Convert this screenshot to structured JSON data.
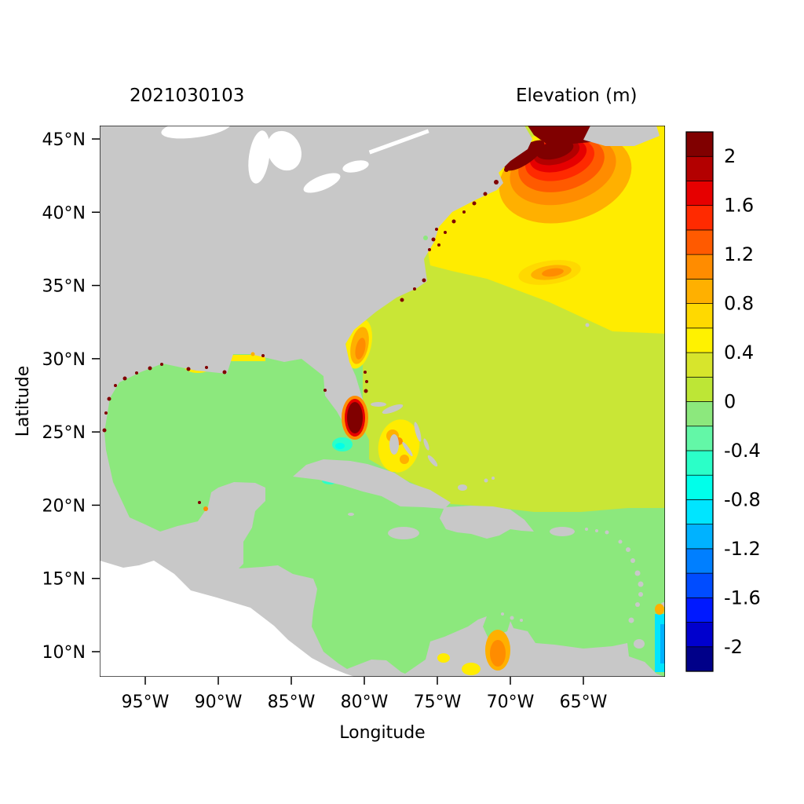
{
  "page": {
    "background": "#ffffff"
  },
  "chart_data": {
    "type": "heatmap",
    "variant": "geographic filled-contour field of sea-surface elevation over the western North Atlantic, Gulf of Mexico and Caribbean",
    "title_left": "2021030103",
    "title_right": "Elevation (m)",
    "xlabel": "Longitude",
    "ylabel": "Latitude",
    "x_tick_labels": [
      "95°W",
      "90°W",
      "85°W",
      "80°W",
      "75°W",
      "70°W",
      "65°W"
    ],
    "y_tick_labels_top_to_bottom": [
      "45°N",
      "40°N",
      "35°N",
      "30°N",
      "25°N",
      "20°N",
      "15°N",
      "10°N"
    ],
    "axes": {
      "lon_range_west_to_east": [
        "~98.5°W",
        "~59.5°W"
      ],
      "lat_range_south_to_north": [
        "~8.5°N",
        "~46°N"
      ],
      "grid": false
    },
    "colorbar": {
      "label": "Elevation (m)",
      "position": "right",
      "range": [
        -2.2,
        2.2
      ],
      "step": 0.2,
      "tick_values": [
        2,
        1.6,
        1.2,
        0.8,
        0.4,
        0,
        -0.4,
        -0.8,
        -1.2,
        -1.6,
        -2
      ],
      "tick_labels": [
        "2",
        "1.6",
        "1.2",
        "0.8",
        "0.4",
        "0",
        "-0.4",
        "-0.8",
        "-1.2",
        "-1.6",
        "-2"
      ],
      "colors_bottom_to_top": [
        "#000089",
        "#0000cd",
        "#0019ff",
        "#004cff",
        "#007fff",
        "#00b2ff",
        "#00e5ff",
        "#00ffea",
        "#2bffc8",
        "#63f7a7",
        "#8ce87d",
        "#bde636",
        "#d7e52c",
        "#fff200",
        "#ffd900",
        "#ffb000",
        "#ff8c00",
        "#ff5a00",
        "#ff2a00",
        "#e60000",
        "#b30000",
        "#800000"
      ]
    },
    "palette_vars": {
      "land": "#c8c8c8",
      "lake": "#ffffff",
      "ocean-base": "#c9e636",
      "green": "#8ce87d",
      "springgreen": "#63f7a7",
      "turquoise": "#2bffc8",
      "aqua": "#00ffea",
      "cyan": "#00e5ff",
      "midblue": "#00b2ff",
      "yellow": "#ffec00",
      "gold": "#ffd900",
      "orange": "#ffb000",
      "deeporange": "#ff8c00",
      "redorange": "#ff5a00",
      "red": "#ff2a00",
      "brightred": "#e60000",
      "darkred": "#b30000",
      "maroon": "#800000"
    },
    "features": [
      {
        "name": "gulf-of-maine-scotian-shelf-maximum",
        "approx_location": "68°W, 43.5°N",
        "elevation_m": "> 2.0 (dark red bullseye with orange/yellow halo)"
      },
      {
        "name": "northwest-atlantic",
        "approx_location": "60-75°W, 38-46°N",
        "elevation_m": "0.4 to 0.8 (yellow)"
      },
      {
        "name": "open-atlantic",
        "approx_location": "most of basin",
        "elevation_m": "0 to 0.4 (yellow-green)"
      },
      {
        "name": "gulf-of-mexico",
        "elevation_m": "-0.2 to 0 (light green)"
      },
      {
        "name": "caribbean-sea",
        "elevation_m": "-0.2 to 0 (light green)"
      },
      {
        "name": "southeast-florida-coast",
        "approx_location": "80°W, 26°N",
        "elevation_m": "> 2.0 (dark red blob)"
      },
      {
        "name": "georgia-south-carolina-coast",
        "approx_location": "81°W, 31°N",
        "elevation_m": "0.8 to 1.2 (orange band)"
      },
      {
        "name": "mid-atlantic-patch",
        "approx_location": "70°W, 36°N",
        "elevation_m": "0.6 to 1.0 (orange lens)"
      },
      {
        "name": "florida-big-bend",
        "approx_location": "83.5°W, 29.5°N",
        "elevation_m": "-0.6 to -0.3 (turquoise)"
      },
      {
        "name": "florida-bay-keys",
        "approx_location": "81.5°W, 24.5°N",
        "elevation_m": "-0.6 to -0.3 (turquoise)"
      },
      {
        "name": "bahamas-banks",
        "approx_location": "78°W, 25°N",
        "elevation_m": "0.4 to 1.0 (yellow/orange spots)"
      },
      {
        "name": "gulf-of-venezuela-lake-maracaibo",
        "approx_location": "71°W, 10.5°N",
        "elevation_m": "0.6 to 1.0 (orange)"
      },
      {
        "name": "orinoco-right-edge-strip",
        "approx_location": "60°W, 9-13°N",
        "elevation_m": "-1.0 to -0.6 (cyan)"
      },
      {
        "name": "northern-gulf-and-texas-coast-specks",
        "elevation_m": "> 1.6 (red speckles along coast)"
      },
      {
        "name": "new-england-coast-specks",
        "elevation_m": "> 2.0 (dark red speckles along coast)"
      },
      {
        "name": "land",
        "elevation_m": "masked (gray)"
      },
      {
        "name": "pacific-outside-model-domain",
        "elevation_m": "no data (white)"
      }
    ]
  }
}
